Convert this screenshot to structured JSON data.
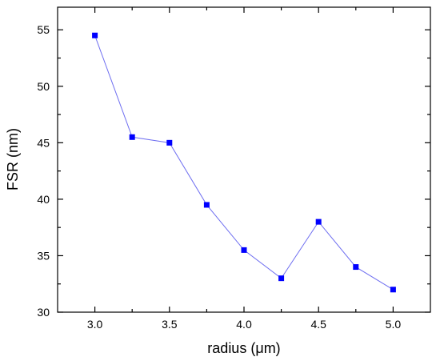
{
  "chart_data": {
    "type": "line",
    "title": "",
    "xlabel": "radius (μm)",
    "ylabel": "FSR (nm)",
    "xlim": [
      2.75,
      5.25
    ],
    "ylim": [
      30,
      57
    ],
    "x_ticks": [
      "3.0",
      "3.5",
      "4.0",
      "4.5",
      "5.0"
    ],
    "x_tick_values": [
      3.0,
      3.5,
      4.0,
      4.5,
      5.0
    ],
    "x_minor_ticks": [
      3.25,
      3.75,
      4.25,
      4.75
    ],
    "y_ticks": [
      "30",
      "35",
      "40",
      "45",
      "50",
      "55"
    ],
    "y_tick_values": [
      30,
      35,
      40,
      45,
      50,
      55
    ],
    "grid": false,
    "legend": "none",
    "series": [
      {
        "marker": "square",
        "color": "#0000ff",
        "line_color": "#6e6ef0",
        "x": [
          3.0,
          3.25,
          3.5,
          3.75,
          4.0,
          4.25,
          4.5,
          4.75,
          5.0
        ],
        "values": [
          54.5,
          45.5,
          45.0,
          39.5,
          35.5,
          33.0,
          38.0,
          34.0,
          32.0
        ]
      }
    ]
  }
}
